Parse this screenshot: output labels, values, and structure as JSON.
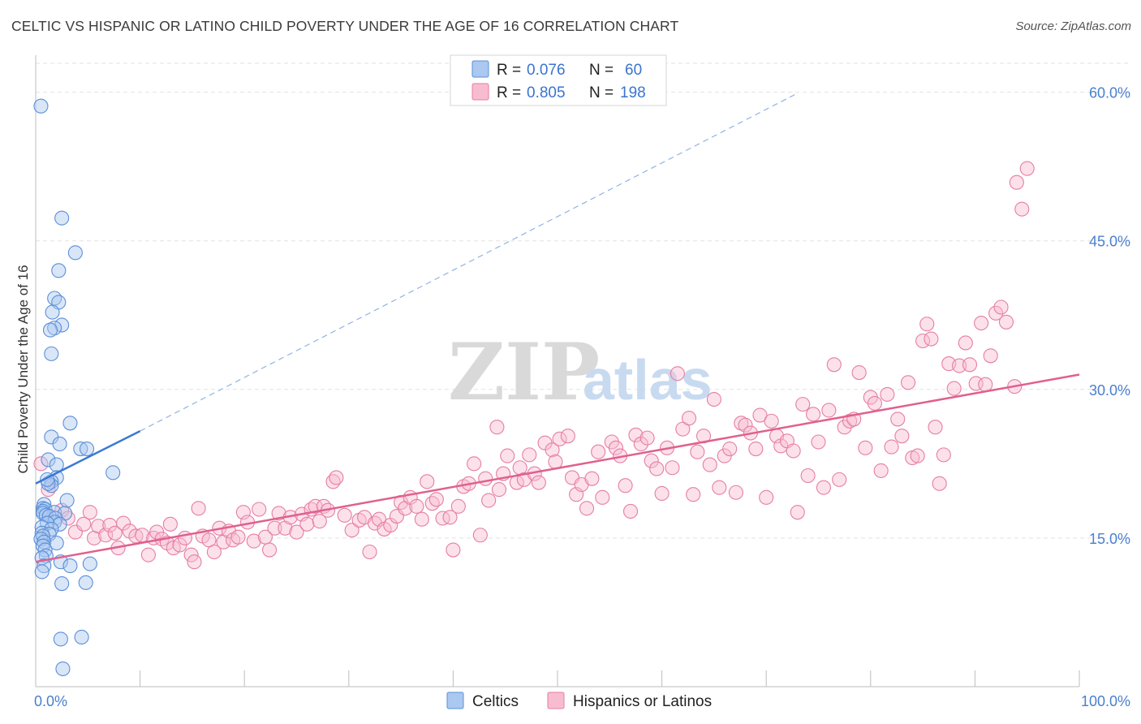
{
  "title": "CELTIC VS HISPANIC OR LATINO CHILD POVERTY UNDER THE AGE OF 16 CORRELATION CHART",
  "source": "Source: ZipAtlas.com",
  "watermark": {
    "zip": "ZIP",
    "atlas": "atlas"
  },
  "legend": {
    "rows": [
      {
        "r_label": "R = ",
        "r_value": "0.076",
        "n_label": "N = ",
        "n_value": "60",
        "color": "#aac8f0",
        "stroke": "#5a8fd8"
      },
      {
        "r_label": "R = ",
        "r_value": "0.805",
        "n_label": "N = ",
        "n_value": "198",
        "color": "#f8bcd0",
        "stroke": "#e57ea3"
      }
    ]
  },
  "chart_data": {
    "type": "scatter",
    "title": "CELTIC VS HISPANIC OR LATINO CHILD POVERTY UNDER THE AGE OF 16 CORRELATION CHART",
    "xlabel": "",
    "ylabel": "Child Poverty Under the Age of 16",
    "xlim": [
      0,
      100
    ],
    "ylim": [
      0,
      63
    ],
    "x_tick_labels": [
      "0.0%",
      "100.0%"
    ],
    "y_ticks": [
      15,
      30,
      45,
      60
    ],
    "y_tick_labels": [
      "15.0%",
      "30.0%",
      "45.0%",
      "60.0%"
    ],
    "grid": true,
    "legend_position": "bottom",
    "series": [
      {
        "name": "Celtics",
        "color": "#aac8f0",
        "stroke": "#5a8fd8",
        "line_color": "#3a78d4",
        "trend": {
          "x": [
            0,
            10
          ],
          "y": [
            20.5,
            25.8
          ],
          "dashed_to": [
            73,
            59.9
          ]
        },
        "points": [
          [
            0.5,
            58.6
          ],
          [
            2.5,
            47.3
          ],
          [
            3.8,
            43.8
          ],
          [
            2.2,
            42.0
          ],
          [
            1.8,
            39.2
          ],
          [
            2.2,
            38.8
          ],
          [
            1.6,
            37.8
          ],
          [
            2.5,
            36.5
          ],
          [
            1.8,
            36.2
          ],
          [
            1.4,
            36.0
          ],
          [
            1.5,
            33.6
          ],
          [
            3.3,
            26.6
          ],
          [
            1.5,
            25.2
          ],
          [
            2.3,
            24.5
          ],
          [
            4.3,
            24.0
          ],
          [
            4.9,
            24.0
          ],
          [
            1.2,
            22.9
          ],
          [
            2.0,
            22.4
          ],
          [
            7.4,
            21.6
          ],
          [
            2.0,
            21.1
          ],
          [
            1.5,
            20.7
          ],
          [
            1.5,
            20.3
          ],
          [
            1.2,
            20.5
          ],
          [
            3.0,
            18.8
          ],
          [
            0.8,
            18.4
          ],
          [
            0.7,
            18.0
          ],
          [
            0.9,
            17.9
          ],
          [
            0.7,
            17.7
          ],
          [
            1.8,
            17.6
          ],
          [
            0.7,
            17.5
          ],
          [
            2.8,
            17.5
          ],
          [
            1.0,
            17.3
          ],
          [
            1.3,
            17.2
          ],
          [
            1.9,
            17.0
          ],
          [
            1.8,
            16.6
          ],
          [
            1.1,
            16.5
          ],
          [
            2.3,
            16.4
          ],
          [
            0.6,
            16.1
          ],
          [
            1.5,
            15.9
          ],
          [
            0.6,
            15.5
          ],
          [
            1.3,
            15.4
          ],
          [
            0.7,
            15.2
          ],
          [
            0.5,
            14.9
          ],
          [
            0.8,
            14.6
          ],
          [
            2.0,
            14.5
          ],
          [
            0.7,
            14.2
          ],
          [
            0.9,
            13.8
          ],
          [
            1.0,
            13.2
          ],
          [
            0.6,
            13.0
          ],
          [
            2.4,
            12.6
          ],
          [
            3.3,
            12.2
          ],
          [
            5.2,
            12.4
          ],
          [
            0.8,
            12.2
          ],
          [
            0.6,
            11.6
          ],
          [
            2.5,
            10.4
          ],
          [
            4.8,
            10.5
          ],
          [
            2.4,
            4.8
          ],
          [
            4.4,
            5.0
          ],
          [
            2.6,
            1.8
          ],
          [
            1.1,
            20.9
          ]
        ]
      },
      {
        "name": "Hispanics or Latinos",
        "color": "#f8bcd0",
        "stroke": "#e57ea3",
        "line_color": "#e0608e",
        "trend": {
          "x": [
            0,
            100
          ],
          "y": [
            12.6,
            31.5
          ]
        },
        "points": [
          [
            0.5,
            22.5
          ],
          [
            1.2,
            19.9
          ],
          [
            2.5,
            17.8
          ],
          [
            3.1,
            17.0
          ],
          [
            3.8,
            15.6
          ],
          [
            4.6,
            16.4
          ],
          [
            5.2,
            17.6
          ],
          [
            5.6,
            15.0
          ],
          [
            6.0,
            16.2
          ],
          [
            6.7,
            15.3
          ],
          [
            7.1,
            16.3
          ],
          [
            7.6,
            15.5
          ],
          [
            7.9,
            14.0
          ],
          [
            8.4,
            16.5
          ],
          [
            9.0,
            15.7
          ],
          [
            9.6,
            15.2
          ],
          [
            10.2,
            15.3
          ],
          [
            10.8,
            13.3
          ],
          [
            11.3,
            15.0
          ],
          [
            11.6,
            15.6
          ],
          [
            12.1,
            14.9
          ],
          [
            12.6,
            14.5
          ],
          [
            12.9,
            16.4
          ],
          [
            13.2,
            14.0
          ],
          [
            13.8,
            14.3
          ],
          [
            14.3,
            15.0
          ],
          [
            14.9,
            13.3
          ],
          [
            15.2,
            12.6
          ],
          [
            15.6,
            18.0
          ],
          [
            16.0,
            15.2
          ],
          [
            16.6,
            14.8
          ],
          [
            17.1,
            13.6
          ],
          [
            17.6,
            16.0
          ],
          [
            18.0,
            14.6
          ],
          [
            18.5,
            15.7
          ],
          [
            18.9,
            14.8
          ],
          [
            19.4,
            15.1
          ],
          [
            19.9,
            17.6
          ],
          [
            20.3,
            16.6
          ],
          [
            20.9,
            14.7
          ],
          [
            21.4,
            17.9
          ],
          [
            22.0,
            15.1
          ],
          [
            22.4,
            13.8
          ],
          [
            22.9,
            16.0
          ],
          [
            23.3,
            17.5
          ],
          [
            23.9,
            16.0
          ],
          [
            24.4,
            17.1
          ],
          [
            25.0,
            15.6
          ],
          [
            25.5,
            17.4
          ],
          [
            26.0,
            16.4
          ],
          [
            26.4,
            17.9
          ],
          [
            26.8,
            18.2
          ],
          [
            27.2,
            16.7
          ],
          [
            27.6,
            18.2
          ],
          [
            28.0,
            17.8
          ],
          [
            28.5,
            20.7
          ],
          [
            28.8,
            21.1
          ],
          [
            29.6,
            17.3
          ],
          [
            30.3,
            15.8
          ],
          [
            31.0,
            16.8
          ],
          [
            31.5,
            17.1
          ],
          [
            32.0,
            13.6
          ],
          [
            32.5,
            16.5
          ],
          [
            32.9,
            16.9
          ],
          [
            33.4,
            15.9
          ],
          [
            34.0,
            16.3
          ],
          [
            34.6,
            17.2
          ],
          [
            35.0,
            18.6
          ],
          [
            35.4,
            18.0
          ],
          [
            35.9,
            19.1
          ],
          [
            36.5,
            18.2
          ],
          [
            37.0,
            16.9
          ],
          [
            37.5,
            20.7
          ],
          [
            38.0,
            18.5
          ],
          [
            38.4,
            18.9
          ],
          [
            39.0,
            17.0
          ],
          [
            39.7,
            17.1
          ],
          [
            40.0,
            13.8
          ],
          [
            40.5,
            18.2
          ],
          [
            41.0,
            20.2
          ],
          [
            41.5,
            20.5
          ],
          [
            42.0,
            22.5
          ],
          [
            42.6,
            15.3
          ],
          [
            43.1,
            21.0
          ],
          [
            43.4,
            18.8
          ],
          [
            44.2,
            26.2
          ],
          [
            44.4,
            19.9
          ],
          [
            44.8,
            21.5
          ],
          [
            45.2,
            23.3
          ],
          [
            46.1,
            20.6
          ],
          [
            46.4,
            22.1
          ],
          [
            46.8,
            20.9
          ],
          [
            47.3,
            23.4
          ],
          [
            47.8,
            21.5
          ],
          [
            48.2,
            20.6
          ],
          [
            48.8,
            24.6
          ],
          [
            49.5,
            23.9
          ],
          [
            49.8,
            22.7
          ],
          [
            50.2,
            25.0
          ],
          [
            51.0,
            25.3
          ],
          [
            51.4,
            21.1
          ],
          [
            51.8,
            19.4
          ],
          [
            52.3,
            20.4
          ],
          [
            52.8,
            18.0
          ],
          [
            53.3,
            21.0
          ],
          [
            53.9,
            23.7
          ],
          [
            54.3,
            19.1
          ],
          [
            55.2,
            24.7
          ],
          [
            55.6,
            24.1
          ],
          [
            56.0,
            23.3
          ],
          [
            56.5,
            20.3
          ],
          [
            57.0,
            17.7
          ],
          [
            57.5,
            25.4
          ],
          [
            58.0,
            24.5
          ],
          [
            58.6,
            25.1
          ],
          [
            59.0,
            22.8
          ],
          [
            59.5,
            22.0
          ],
          [
            60.0,
            19.5
          ],
          [
            60.5,
            24.1
          ],
          [
            61.0,
            22.1
          ],
          [
            61.5,
            31.6
          ],
          [
            62.0,
            26.0
          ],
          [
            62.6,
            27.1
          ],
          [
            63.0,
            19.4
          ],
          [
            63.4,
            23.7
          ],
          [
            64.0,
            25.3
          ],
          [
            64.6,
            22.4
          ],
          [
            65.0,
            29.0
          ],
          [
            65.5,
            20.1
          ],
          [
            66.0,
            23.3
          ],
          [
            66.5,
            24.0
          ],
          [
            67.1,
            19.6
          ],
          [
            67.6,
            26.6
          ],
          [
            68.0,
            26.4
          ],
          [
            68.5,
            25.6
          ],
          [
            69.0,
            24.0
          ],
          [
            69.4,
            27.4
          ],
          [
            70.0,
            19.1
          ],
          [
            70.5,
            26.8
          ],
          [
            71.0,
            25.3
          ],
          [
            71.4,
            24.3
          ],
          [
            72.0,
            24.8
          ],
          [
            72.6,
            23.8
          ],
          [
            73.0,
            17.6
          ],
          [
            73.5,
            28.5
          ],
          [
            74.0,
            21.3
          ],
          [
            74.5,
            27.5
          ],
          [
            75.0,
            24.7
          ],
          [
            75.5,
            20.1
          ],
          [
            76.0,
            27.9
          ],
          [
            76.5,
            32.5
          ],
          [
            77.0,
            20.9
          ],
          [
            77.5,
            26.2
          ],
          [
            78.0,
            26.8
          ],
          [
            78.4,
            27.0
          ],
          [
            78.9,
            31.7
          ],
          [
            79.5,
            24.1
          ],
          [
            80.0,
            29.2
          ],
          [
            80.4,
            28.6
          ],
          [
            81.0,
            21.8
          ],
          [
            81.6,
            29.5
          ],
          [
            82.0,
            24.2
          ],
          [
            82.6,
            27.0
          ],
          [
            83.0,
            25.3
          ],
          [
            83.6,
            30.7
          ],
          [
            84.0,
            23.1
          ],
          [
            84.5,
            23.3
          ],
          [
            85.0,
            34.9
          ],
          [
            85.4,
            36.6
          ],
          [
            85.8,
            35.1
          ],
          [
            86.2,
            26.2
          ],
          [
            86.6,
            20.5
          ],
          [
            87.0,
            23.4
          ],
          [
            87.5,
            32.6
          ],
          [
            88.0,
            30.1
          ],
          [
            88.5,
            32.4
          ],
          [
            89.1,
            34.7
          ],
          [
            89.5,
            32.5
          ],
          [
            90.1,
            30.6
          ],
          [
            90.6,
            36.7
          ],
          [
            91.0,
            30.5
          ],
          [
            91.5,
            33.4
          ],
          [
            92.0,
            37.7
          ],
          [
            92.5,
            38.3
          ],
          [
            93.0,
            36.8
          ],
          [
            94.0,
            50.9
          ],
          [
            94.5,
            48.2
          ],
          [
            95.0,
            52.3
          ],
          [
            93.8,
            30.3
          ]
        ]
      }
    ]
  }
}
